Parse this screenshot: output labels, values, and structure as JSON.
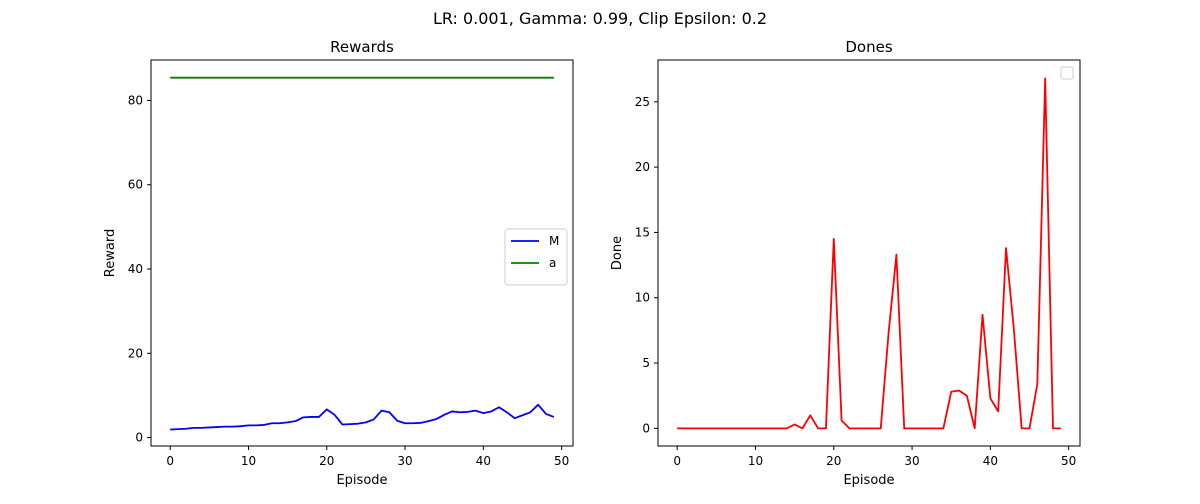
{
  "figure": {
    "suptitle": "LR: 0.001, Gamma: 0.99, Clip Epsilon: 0.2"
  },
  "chart_data": [
    {
      "type": "line",
      "title": "Rewards",
      "xlabel": "Episode",
      "ylabel": "Reward",
      "xlim": [
        -2.45,
        51.45
      ],
      "ylim": [
        -2.0,
        89.6
      ],
      "xticks": [
        0,
        10,
        20,
        30,
        40,
        50
      ],
      "yticks": [
        0,
        20,
        40,
        60,
        80
      ],
      "grid": false,
      "legend": {
        "placement": "center-right",
        "entries": [
          "M",
          "a"
        ]
      },
      "series": [
        {
          "name": "M",
          "color": "#0000ff",
          "x": [
            0,
            1,
            2,
            3,
            4,
            5,
            6,
            7,
            8,
            9,
            10,
            11,
            12,
            13,
            14,
            15,
            16,
            17,
            18,
            19,
            20,
            21,
            22,
            23,
            24,
            25,
            26,
            27,
            28,
            29,
            30,
            31,
            32,
            33,
            34,
            35,
            36,
            37,
            38,
            39,
            40,
            41,
            42,
            43,
            44,
            45,
            46,
            47,
            48,
            49
          ],
          "y": [
            1.9,
            2.0,
            2.1,
            2.3,
            2.3,
            2.4,
            2.5,
            2.6,
            2.6,
            2.7,
            2.9,
            2.9,
            3.0,
            3.4,
            3.4,
            3.6,
            3.9,
            4.8,
            4.9,
            4.9,
            6.7,
            5.4,
            3.1,
            3.2,
            3.3,
            3.6,
            4.3,
            6.4,
            6.0,
            4.0,
            3.4,
            3.4,
            3.5,
            3.9,
            4.4,
            5.4,
            6.2,
            6.0,
            6.1,
            6.4,
            5.8,
            6.2,
            7.2,
            6.0,
            4.6,
            5.3,
            6.0,
            7.8,
            5.6,
            4.9
          ]
        },
        {
          "name": "a",
          "color": "#008000",
          "x": [
            0,
            1,
            2,
            3,
            4,
            5,
            6,
            7,
            8,
            9,
            10,
            11,
            12,
            13,
            14,
            15,
            16,
            17,
            18,
            19,
            20,
            21,
            22,
            23,
            24,
            25,
            26,
            27,
            28,
            29,
            30,
            31,
            32,
            33,
            34,
            35,
            36,
            37,
            38,
            39,
            40,
            41,
            42,
            43,
            44,
            45,
            46,
            47,
            48,
            49
          ],
          "y": [
            85.4,
            85.4,
            85.4,
            85.4,
            85.4,
            85.4,
            85.4,
            85.4,
            85.4,
            85.4,
            85.4,
            85.4,
            85.4,
            85.4,
            85.4,
            85.4,
            85.4,
            85.4,
            85.4,
            85.4,
            85.4,
            85.4,
            85.4,
            85.4,
            85.4,
            85.4,
            85.4,
            85.4,
            85.4,
            85.4,
            85.4,
            85.4,
            85.4,
            85.4,
            85.4,
            85.4,
            85.4,
            85.4,
            85.4,
            85.4,
            85.4,
            85.4,
            85.4,
            85.4,
            85.4,
            85.4,
            85.4,
            85.4,
            85.4,
            85.4
          ]
        }
      ]
    },
    {
      "type": "line",
      "title": "Dones",
      "xlabel": "Episode",
      "ylabel": "Done",
      "xlim": [
        -2.45,
        51.45
      ],
      "ylim": [
        -1.35,
        28.2
      ],
      "xticks": [
        0,
        10,
        20,
        30,
        40,
        50
      ],
      "yticks": [
        0,
        5,
        10,
        15,
        20,
        25
      ],
      "grid": false,
      "legend": {
        "placement": "top-right",
        "entries": []
      },
      "series": [
        {
          "color": "#ff0000",
          "x": [
            0,
            1,
            2,
            3,
            4,
            5,
            6,
            7,
            8,
            9,
            10,
            11,
            12,
            13,
            14,
            15,
            16,
            17,
            18,
            19,
            20,
            21,
            22,
            23,
            24,
            25,
            26,
            27,
            28,
            29,
            30,
            31,
            32,
            33,
            34,
            35,
            36,
            37,
            38,
            39,
            40,
            41,
            42,
            43,
            44,
            45,
            46,
            47,
            48,
            49
          ],
          "y": [
            0,
            0,
            0,
            0,
            0,
            0,
            0,
            0,
            0,
            0,
            0,
            0,
            0,
            0,
            0,
            0.3,
            0,
            1.0,
            0,
            0,
            14.5,
            0.6,
            0,
            0,
            0,
            0,
            0,
            7.3,
            13.3,
            0,
            0,
            0,
            0,
            0,
            0,
            2.8,
            2.9,
            2.5,
            0,
            8.7,
            2.3,
            1.3,
            13.8,
            7.6,
            0,
            0,
            3.4,
            26.8,
            0,
            0
          ]
        }
      ]
    }
  ]
}
